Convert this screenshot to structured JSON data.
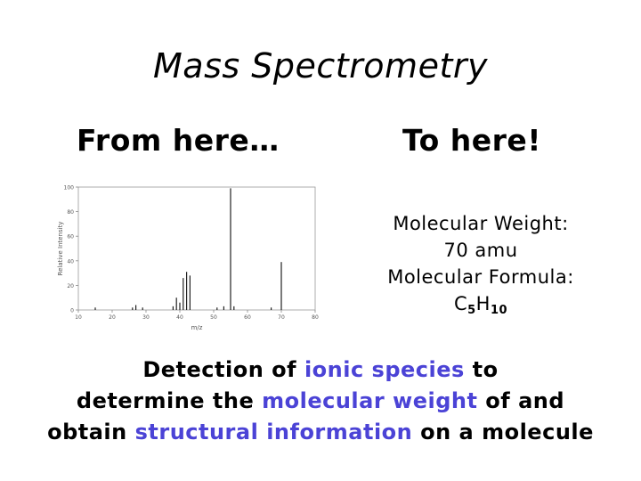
{
  "title": "Mass Spectrometry",
  "left_heading": "From here…",
  "right_heading": "To here!",
  "info": {
    "mw_label": "Molecular Weight:",
    "mw_value": "70 amu",
    "mf_label": "Molecular Formula:",
    "mf_c": "C",
    "mf_c_sub": "5",
    "mf_h": "H",
    "mf_h_sub": "10"
  },
  "bottom_text": {
    "line1_a": "Detection of ",
    "line1_hl": "ionic species",
    "line1_b": " to",
    "line2_a": "determine the ",
    "line2_hl": "molecular weight",
    "line2_b": " of and",
    "line3_a": "obtain ",
    "line3_hl1": "structural",
    "line3_mid": " ",
    "line3_hl2": "information",
    "line3_b": " on a molecule"
  },
  "highlight_color": "#4b43d6",
  "chart_data": {
    "type": "bar",
    "title": "",
    "xlabel": "m/z",
    "ylabel": "Relative Intensity",
    "xlim": [
      10,
      80
    ],
    "ylim": [
      0,
      100
    ],
    "x_ticks": [
      "10",
      "20",
      "30",
      "40",
      "50",
      "60",
      "70",
      "80"
    ],
    "y_ticks": [
      "0",
      "20",
      "40",
      "60",
      "80",
      "100"
    ],
    "peaks": [
      {
        "x": 15,
        "y": 2
      },
      {
        "x": 26,
        "y": 2
      },
      {
        "x": 27,
        "y": 4
      },
      {
        "x": 29,
        "y": 2
      },
      {
        "x": 38,
        "y": 3
      },
      {
        "x": 39,
        "y": 10
      },
      {
        "x": 40,
        "y": 6
      },
      {
        "x": 41,
        "y": 26
      },
      {
        "x": 42,
        "y": 31
      },
      {
        "x": 43,
        "y": 28
      },
      {
        "x": 51,
        "y": 2
      },
      {
        "x": 53,
        "y": 3
      },
      {
        "x": 55,
        "y": 99
      },
      {
        "x": 56,
        "y": 3
      },
      {
        "x": 67,
        "y": 2
      },
      {
        "x": 70,
        "y": 39
      }
    ]
  }
}
